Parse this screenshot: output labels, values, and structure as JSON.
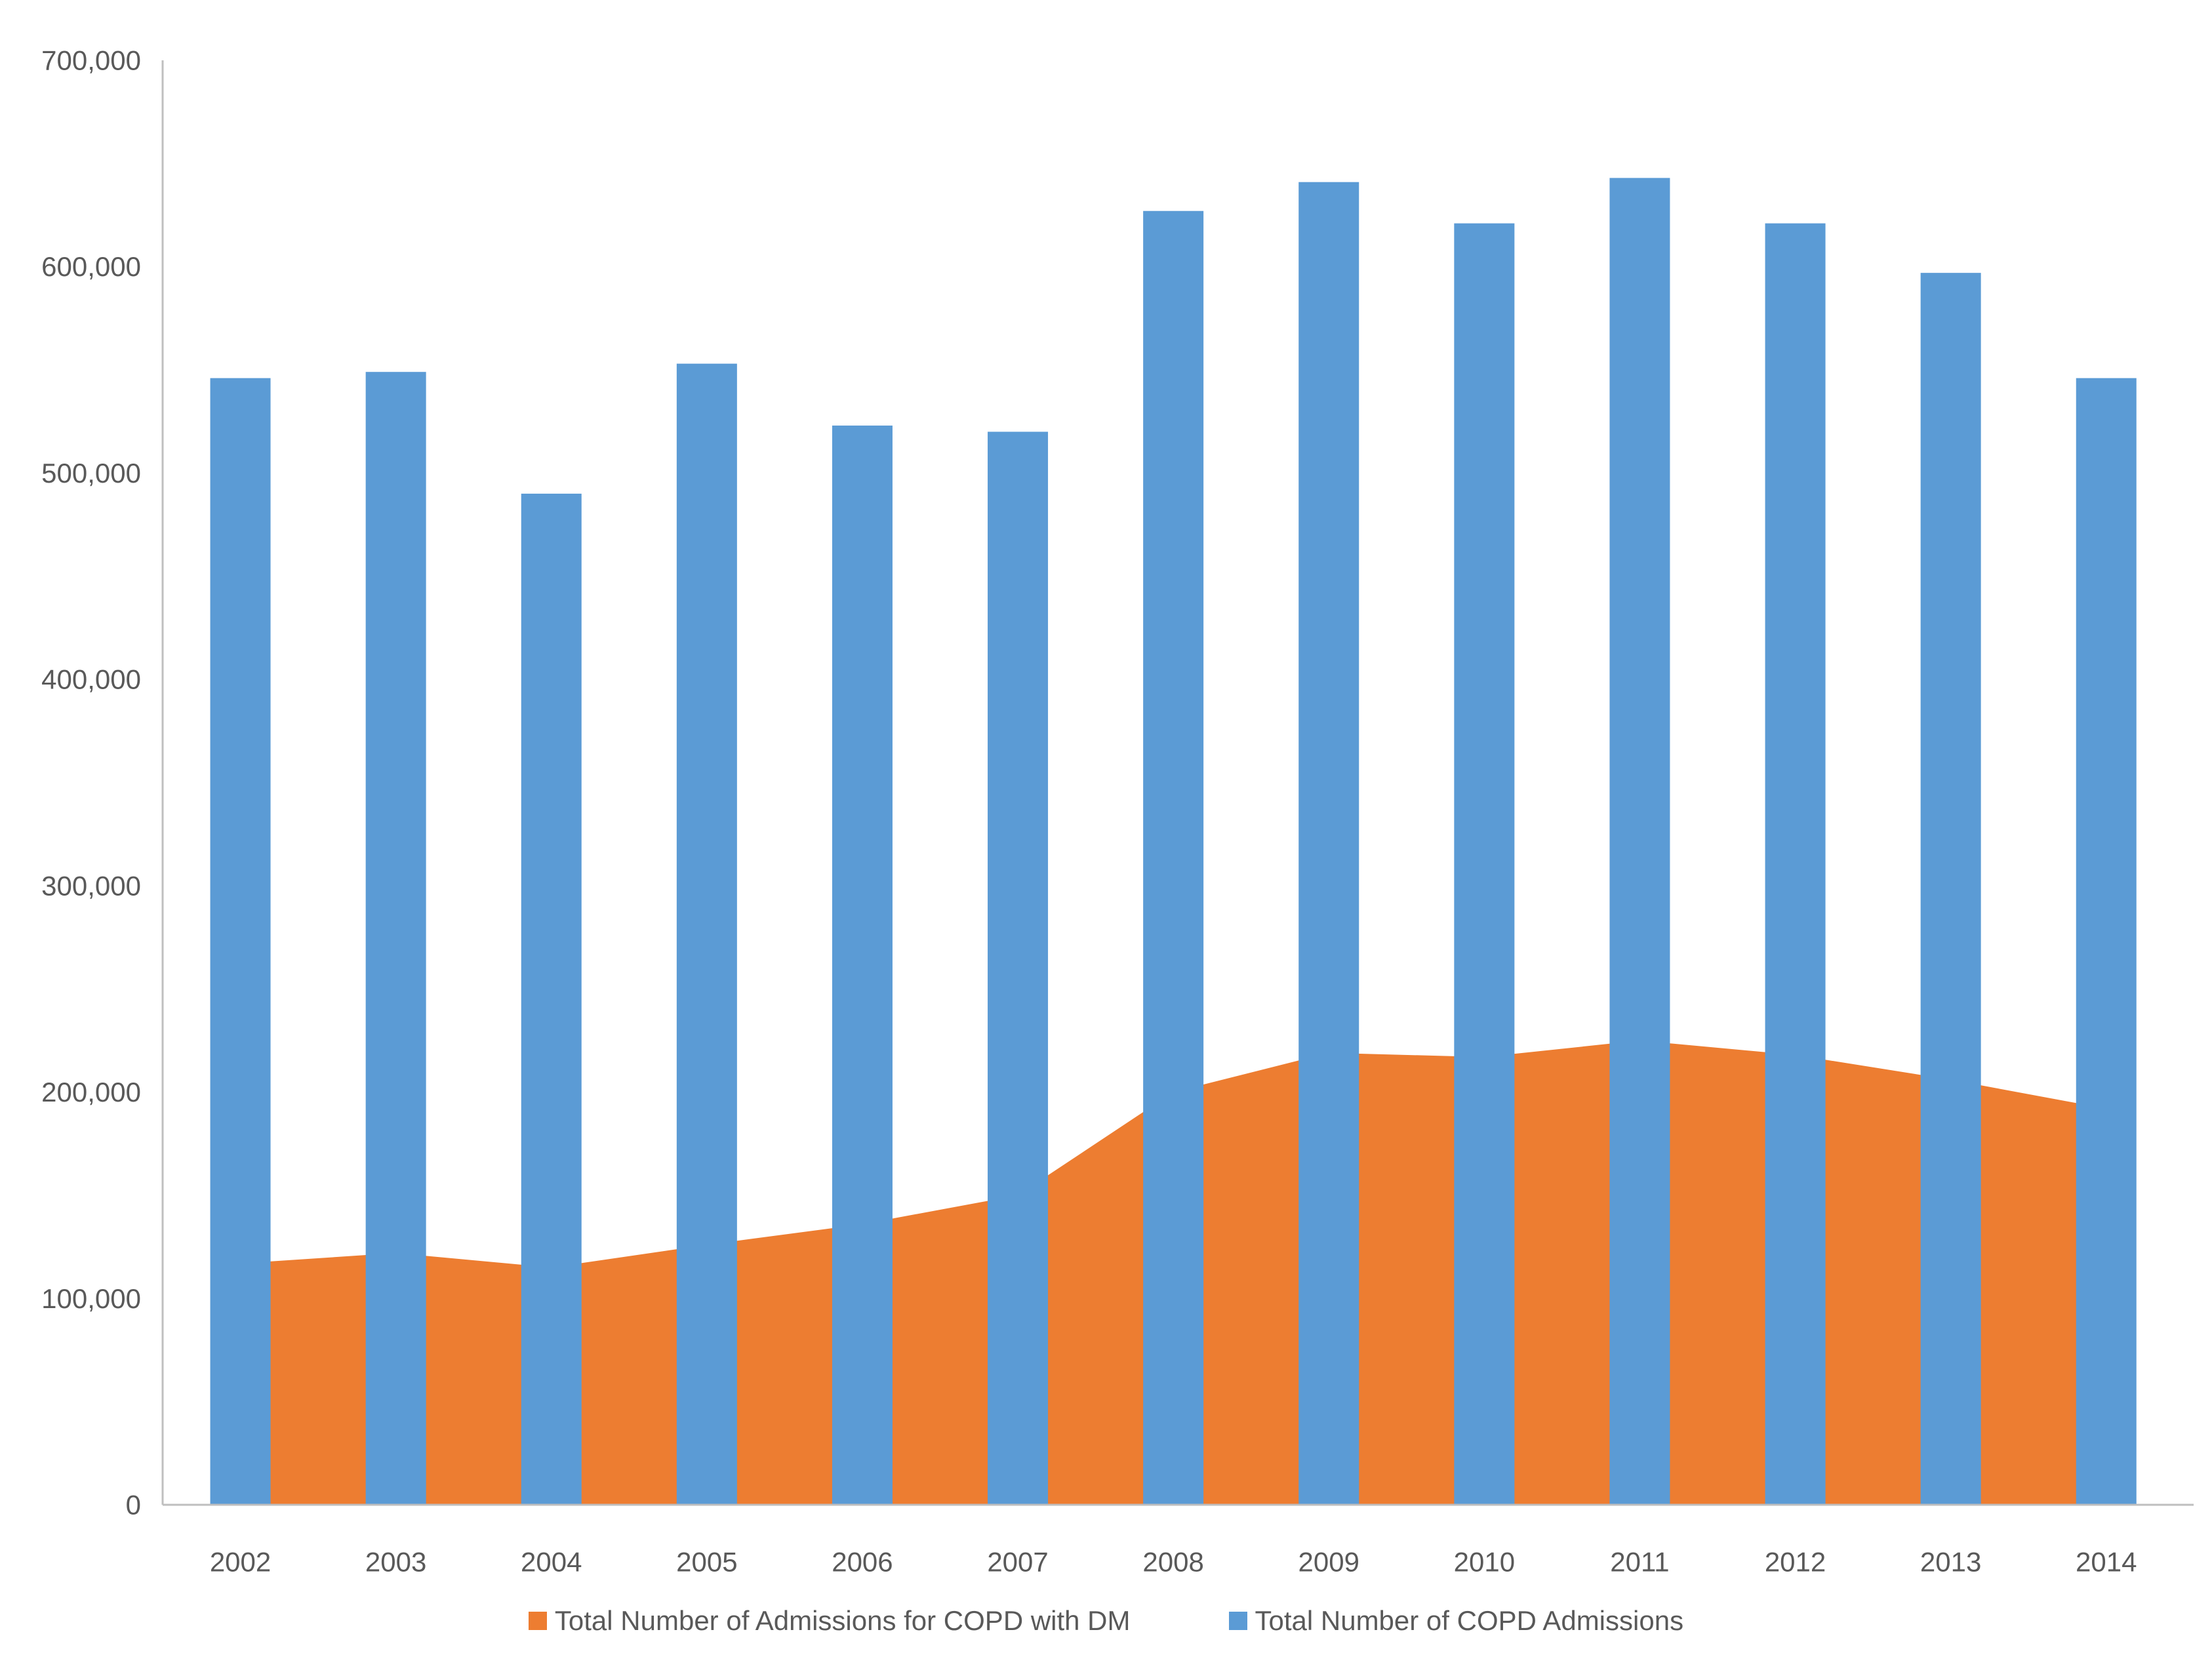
{
  "page": {
    "background_color": "#ffffff"
  },
  "axis": {
    "line_color": "#bfbfbf",
    "text_color": "#595959"
  },
  "legend": {
    "items": [
      {
        "label": "Total Number of Admissions for COPD with DM",
        "color": "#ED7D31"
      },
      {
        "label": "Total Number of COPD Admissions",
        "color": "#5B9BD5"
      }
    ]
  },
  "chart_data": {
    "type": "combo-bar-area",
    "title": "",
    "xlabel": "",
    "ylabel": "",
    "categories": [
      "2002",
      "2003",
      "2004",
      "2005",
      "2006",
      "2007",
      "2008",
      "2009",
      "2010",
      "2011",
      "2012",
      "2013",
      "2014"
    ],
    "series": [
      {
        "name": "Total Number of Admissions for COPD with DM",
        "type": "area",
        "color": "#ED7D31",
        "values": [
          117000,
          122000,
          115000,
          126000,
          136000,
          150000,
          200000,
          219000,
          217000,
          225000,
          218000,
          206000,
          192000
        ]
      },
      {
        "name": "Total Number of COPD Admissions",
        "type": "bar",
        "color": "#5B9BD5",
        "values": [
          546000,
          549000,
          490000,
          553000,
          523000,
          520000,
          627000,
          641000,
          621000,
          643000,
          621000,
          597000,
          546000
        ]
      }
    ],
    "ylim": [
      0,
      700000
    ],
    "ytick_step": 100000,
    "ytick_labels": [
      "0",
      "100,000",
      "200,000",
      "300,000",
      "400,000",
      "500,000",
      "600,000",
      "700,000"
    ],
    "grid": false,
    "legend_position": "bottom"
  }
}
